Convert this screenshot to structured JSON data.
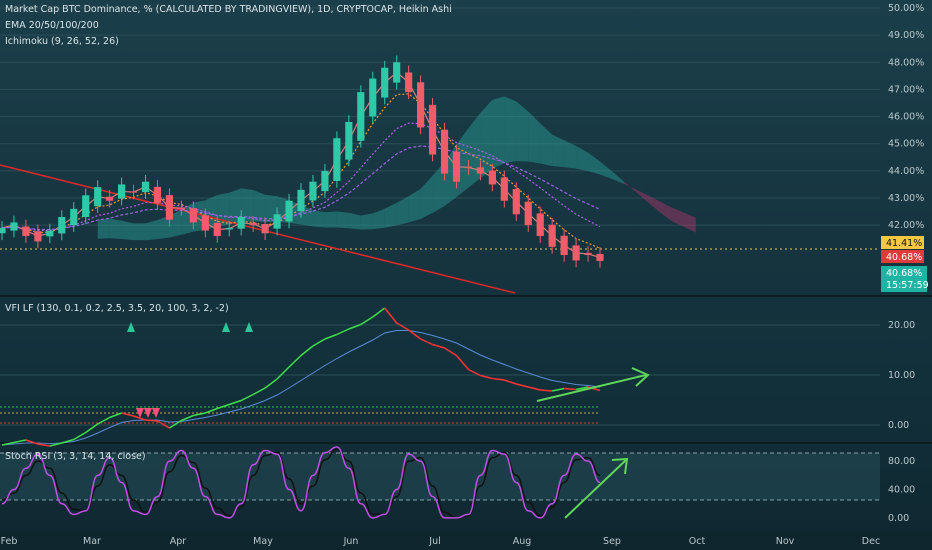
{
  "legend": {
    "main_title": "Market Cap BTC Dominance, % (CALCULATED BY TRADINGVIEW), 1D, CRYPTOCAP, Heikin Ashi",
    "ema": "EMA 20/50/100/200",
    "ichimoku": "Ichimoku (9, 26, 52, 26)",
    "vfi": "VFI LF (130, 0.1, 0.2, 2.5, 3.5, 20, 100, 3, 2, -2)",
    "stoch": "Stoch RSI (3, 3, 14, 14, close)"
  },
  "badges": {
    "price_a": "41.41%",
    "price_b": "40.68%",
    "price_c": "40.68%",
    "countdown": "15:57:59",
    "colors": {
      "a": "#f5c842",
      "b": "#e03b3b",
      "c": "#1fb3a4"
    }
  },
  "colors": {
    "candle_up": "#2fc9a8",
    "candle_down": "#f25c6a",
    "ema20": "#d67c7c",
    "ema50": "#f29b2f",
    "ema100": "#b85cf0",
    "ema200": "#9f63e6",
    "kumo_bull": "#2aa39a",
    "kumo_bear": "#b4356c",
    "trendline": "#e02828",
    "vfi_up": "#3ee04a",
    "vfi_down": "#ff3333",
    "vfi_signal": "#5a8ad8",
    "stoch_k": "#c04fe6",
    "stoch_d": "#111111",
    "arrow": "#5ed65a"
  },
  "chart_data": [
    {
      "type": "line",
      "name_text": "Market Cap BTC Dominance",
      "ylim": [
        39.5,
        50.0
      ],
      "yticks": [
        "50.00%",
        "49.00%",
        "48.00%",
        "47.00%",
        "46.00%",
        "45.00%",
        "44.00%",
        "43.00%",
        "42.00%"
      ],
      "xticks": [
        "Feb",
        "Mar",
        "Apr",
        "May",
        "Jun",
        "Jul",
        "Aug",
        "Sep",
        "Oct",
        "Nov",
        "Dec"
      ],
      "close": [
        41.9,
        42.1,
        41.6,
        41.4,
        41.8,
        42.3,
        42.6,
        43.1,
        43.4,
        42.9,
        43.5,
        43.2,
        43.6,
        42.8,
        42.2,
        42.6,
        42.1,
        41.8,
        41.6,
        41.9,
        42.3,
        42.0,
        41.7,
        42.4,
        42.9,
        43.3,
        43.6,
        44.0,
        45.2,
        45.8,
        46.9,
        47.4,
        47.8,
        48.0,
        46.9,
        45.6,
        44.6,
        43.9,
        43.6,
        44.1,
        43.9,
        43.5,
        42.9,
        42.4,
        42.0,
        41.6,
        41.2,
        40.9,
        40.7,
        40.9,
        40.68
      ],
      "ema_labels": [
        "EMA 20",
        "EMA 50",
        "EMA 100",
        "EMA 200"
      ]
    },
    {
      "type": "line",
      "name_text": "VFI LF",
      "ylim": [
        -3,
        25
      ],
      "yticks": [
        "20.00",
        "10.00",
        "0.00"
      ],
      "vfi": [
        -4,
        -3.5,
        -3,
        -3.8,
        -4.2,
        -3.6,
        -2.9,
        -1.5,
        0.2,
        1.5,
        2.4,
        1.8,
        1.0,
        0.8,
        -0.6,
        0.9,
        1.9,
        2.4,
        3.3,
        4.1,
        4.9,
        6.1,
        7.4,
        9.2,
        11.6,
        13.9,
        15.8,
        17.2,
        18.1,
        19.2,
        20.1,
        21.6,
        23.4,
        20.4,
        19.0,
        17.2,
        16.1,
        15.4,
        13.9,
        11.1,
        9.9,
        9.3,
        9.0,
        8.2,
        7.6,
        7.0,
        6.8,
        7.3,
        7.1,
        7.6,
        6.9
      ],
      "signal": [
        -4,
        -3.8,
        -3.6,
        -3.6,
        -3.7,
        -3.6,
        -3.3,
        -2.6,
        -1.6,
        -0.5,
        0.5,
        0.9,
        1.0,
        1.0,
        0.6,
        0.7,
        1.1,
        1.5,
        2.0,
        2.6,
        3.2,
        4.0,
        4.9,
        6.0,
        7.4,
        8.9,
        10.4,
        11.9,
        13.3,
        14.6,
        15.8,
        17.0,
        18.4,
        18.9,
        18.9,
        18.5,
        17.9,
        17.2,
        16.4,
        15.2,
        14.0,
        13.0,
        12.1,
        11.2,
        10.4,
        9.6,
        8.9,
        8.5,
        8.1,
        7.9,
        7.6
      ]
    },
    {
      "type": "line",
      "name_text": "Stoch RSI",
      "ylim": [
        -10,
        100
      ],
      "yticks": [
        "80.00",
        "40.00",
        "0.00"
      ],
      "k": [
        20,
        40,
        70,
        90,
        60,
        20,
        5,
        10,
        60,
        85,
        50,
        10,
        5,
        30,
        80,
        95,
        70,
        30,
        5,
        0,
        20,
        75,
        95,
        90,
        40,
        10,
        60,
        92,
        100,
        70,
        20,
        0,
        5,
        40,
        90,
        80,
        30,
        0,
        0,
        5,
        60,
        95,
        90,
        50,
        10,
        0,
        20,
        60,
        90,
        80,
        50
      ],
      "d": [
        25,
        35,
        60,
        80,
        70,
        35,
        12,
        10,
        45,
        75,
        60,
        25,
        8,
        22,
        65,
        88,
        78,
        42,
        14,
        3,
        15,
        60,
        88,
        92,
        55,
        20,
        45,
        82,
        97,
        80,
        35,
        5,
        5,
        30,
        80,
        85,
        45,
        8,
        0,
        3,
        45,
        85,
        92,
        60,
        22,
        3,
        15,
        50,
        82,
        85,
        60
      ]
    }
  ]
}
